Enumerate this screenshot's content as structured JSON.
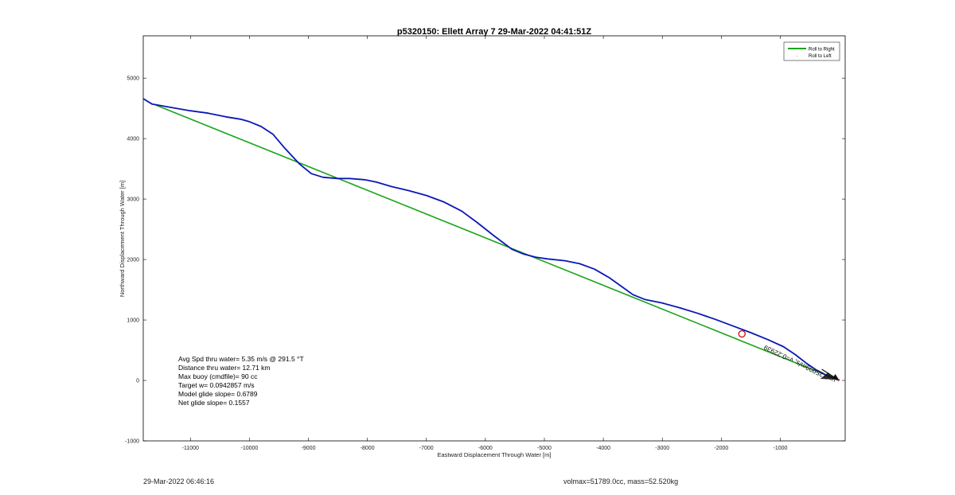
{
  "chart_data": {
    "type": "line",
    "title": "p5320150: Ellett Array 7 29-Mar-2022 04:41:51Z",
    "xlabel": "Eastward Displacement Through Water [m]",
    "ylabel": "Northward Displacement Through Water [m]",
    "xlim": [
      -11800,
      100
    ],
    "ylim": [
      -1000,
      5700
    ],
    "x_ticks": [
      -11000,
      -10000,
      -9000,
      -8000,
      -7000,
      -6000,
      -5000,
      -4000,
      -3000,
      -2000,
      -1000
    ],
    "y_ticks": [
      -1000,
      0,
      1000,
      2000,
      3000,
      4000,
      5000
    ],
    "grid": false,
    "legend": {
      "position": "top-right",
      "entries": [
        "Roll to Right",
        "Roll to Left"
      ]
    },
    "colors": {
      "track": "#0a18b5",
      "roll_right": "#1aa41a",
      "roll_left": "#d01a1a",
      "marker": "#d01a1a",
      "annotation": "#111111"
    },
    "series": [
      {
        "name": "Roll to Right",
        "role": "net-line",
        "x": [
          -11600,
          0
        ],
        "y": [
          4560,
          0
        ]
      },
      {
        "name": "Roll to Left",
        "role": "marker-only",
        "x": [],
        "y": []
      },
      {
        "name": "",
        "role": "track",
        "x": [
          -11800,
          -11650,
          -11300,
          -11000,
          -10700,
          -10400,
          -10150,
          -10000,
          -9800,
          -9600,
          -9400,
          -9150,
          -8950,
          -8750,
          -8500,
          -8300,
          -8050,
          -7850,
          -7600,
          -7300,
          -7000,
          -6700,
          -6400,
          -6150,
          -5850,
          -5550,
          -5350,
          -5150,
          -4950,
          -4650,
          -4400,
          -4150,
          -3900,
          -3700,
          -3500,
          -3300,
          -3000,
          -2700,
          -2400,
          -2100,
          -1800,
          -1500,
          -1200,
          -950,
          -750,
          -550,
          -400,
          -250,
          -100,
          0
        ],
        "y": [
          4660,
          4570,
          4510,
          4460,
          4420,
          4360,
          4320,
          4280,
          4200,
          4070,
          3840,
          3580,
          3420,
          3360,
          3340,
          3340,
          3320,
          3280,
          3210,
          3140,
          3060,
          2950,
          2800,
          2620,
          2390,
          2170,
          2090,
          2040,
          2010,
          1980,
          1930,
          1840,
          1700,
          1560,
          1420,
          1340,
          1280,
          1200,
          1110,
          1010,
          900,
          790,
          670,
          560,
          430,
          280,
          180,
          100,
          40,
          0
        ]
      }
    ],
    "circle_marker": {
      "x": -1650,
      "y": 770
    },
    "annotation_text": "u=0.25999m/s, v=0.22939"
  },
  "stats": {
    "lines": [
      "Avg Spd thru water=  5.35 m/s @ 291.5 °T",
      "Distance thru water= 12.71 km",
      "Max buoy (cmdfile)= 90 cc",
      "Target w= 0.0942857 m/s",
      "Model glide slope= 0.6789",
      "Net glide slope= 0.1557"
    ]
  },
  "footer": {
    "timestamp": "29-Mar-2022 06:46:16",
    "summary": "volmax=51789.0cc, mass=52.520kg"
  }
}
